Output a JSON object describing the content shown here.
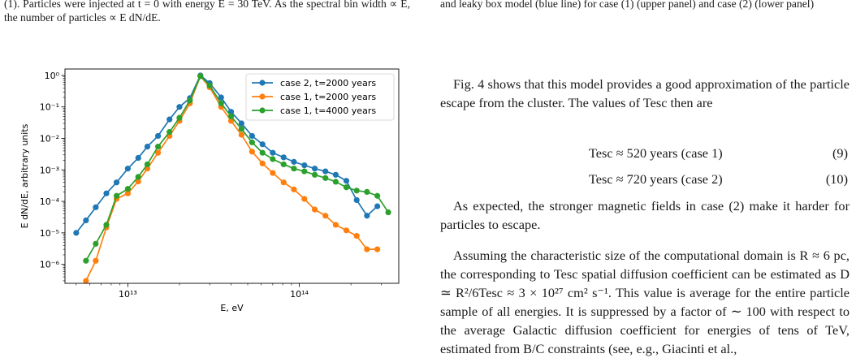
{
  "left_column": {
    "caption": "(1). Particles were injected at t = 0 with energy E = 30 TeV. As the spectral bin width ∝ E, the number of particles ∝ E dN/dE."
  },
  "right_column": {
    "caption": "and leaky box model (blue line) for case (1) (upper panel) and case (2) (lower panel)",
    "paragraph1": "Fig. 4 shows that this model provides a good approximation of the particle escape from the cluster. The values of Tesc then are",
    "equation1": {
      "text": "Tesc ≈ 520 years (case 1)",
      "number": "(9)"
    },
    "equation2": {
      "text": "Tesc ≈ 720 years (case 2)",
      "number": "(10)"
    },
    "paragraph2": "As expected, the stronger magnetic fields in case (2) make it harder for particles to escape.",
    "paragraph3": "Assuming the characteristic size of the computational domain is R ≈ 6 pc, the corresponding to Tesc spatial diffusion coefficient can be estimated as D ≃ R²/6Tesc ≈ 3 × 10²⁷ cm² s⁻¹. This value is average for the entire particle sample of all energies. It is suppressed by a factor of ∼ 100 with respect to the average Galactic diffusion coefficient for energies of tens of TeV, estimated from B/C constraints (see, e.g., Giacinti et al.,"
  },
  "chart_data": {
    "type": "line",
    "xlabel": "E, eV",
    "ylabel": "E dN/dE, arbitrary units",
    "xscale": "log",
    "yscale": "log",
    "xlim": [
      4300000000000.0,
      380000000000000.0
    ],
    "ylim": [
      2.5e-07,
      1.6
    ],
    "x_ticks": [
      {
        "value": 10000000000000.0,
        "label": "10¹³"
      },
      {
        "value": 100000000000000.0,
        "label": "10¹⁴"
      }
    ],
    "y_ticks": [
      {
        "value": 1,
        "label": "10⁰"
      },
      {
        "value": 0.1,
        "label": "10⁻¹"
      },
      {
        "value": 0.01,
        "label": "10⁻²"
      },
      {
        "value": 0.001,
        "label": "10⁻³"
      },
      {
        "value": 0.0001,
        "label": "10⁻⁴"
      },
      {
        "value": 1e-05,
        "label": "10⁻⁵"
      },
      {
        "value": 1e-06,
        "label": "10⁻⁶"
      }
    ],
    "legend_position": "top-right",
    "grid": false,
    "series": [
      {
        "name": "case 2, t=2000 years",
        "color": "#1f77b4",
        "x": [
          5000000000000.0,
          5700000000000.0,
          6500000000000.0,
          7500000000000.0,
          8600000000000.0,
          10000000000000.0,
          11500000000000.0,
          13000000000000.0,
          15000000000000.0,
          17500000000000.0,
          20000000000000.0,
          23000000000000.0,
          26500000000000.0,
          30000000000000.0,
          35000000000000.0,
          40000000000000.0,
          46000000000000.0,
          53000000000000.0,
          61000000000000.0,
          70000000000000.0,
          81000000000000.0,
          93000000000000.0,
          107000000000000.0,
          123000000000000.0,
          142000000000000.0,
          163000000000000.0,
          188000000000000.0,
          216000000000000.0,
          248000000000000.0,
          285000000000000.0
        ],
        "y": [
          1e-05,
          2.5e-05,
          6.5e-05,
          0.00018,
          0.0004,
          0.0011,
          0.0024,
          0.0055,
          0.012,
          0.04,
          0.1,
          0.19,
          1.0,
          0.57,
          0.2,
          0.07,
          0.03,
          0.012,
          0.0065,
          0.0035,
          0.0025,
          0.0018,
          0.0014,
          0.0011,
          0.0009,
          0.0007,
          0.00045,
          0.00011,
          3.5e-05,
          7e-05
        ]
      },
      {
        "name": "case 1, t=2000 years",
        "color": "#ff7f0e",
        "x": [
          5700000000000.0,
          6500000000000.0,
          7500000000000.0,
          8600000000000.0,
          10000000000000.0,
          11500000000000.0,
          13000000000000.0,
          15000000000000.0,
          17500000000000.0,
          20000000000000.0,
          23000000000000.0,
          26500000000000.0,
          30000000000000.0,
          35000000000000.0,
          40000000000000.0,
          46000000000000.0,
          53000000000000.0,
          61000000000000.0,
          70000000000000.0,
          81000000000000.0,
          93000000000000.0,
          107000000000000.0,
          123000000000000.0,
          142000000000000.0,
          163000000000000.0,
          188000000000000.0,
          216000000000000.0,
          248000000000000.0,
          285000000000000.0
        ],
        "y": [
          3e-07,
          1.3e-06,
          1.5e-05,
          0.00012,
          0.00018,
          0.00043,
          0.0011,
          0.0035,
          0.012,
          0.036,
          0.13,
          0.95,
          0.42,
          0.1,
          0.036,
          0.013,
          0.0038,
          0.0016,
          0.0008,
          0.0004,
          0.00024,
          0.00012,
          5.5e-05,
          3.5e-05,
          1.8e-05,
          1.2e-05,
          8e-06,
          3e-06,
          3e-06
        ]
      },
      {
        "name": "case 1, t=4000 years",
        "color": "#2ca02c",
        "x": [
          5700000000000.0,
          6500000000000.0,
          7500000000000.0,
          8600000000000.0,
          10000000000000.0,
          11500000000000.0,
          13000000000000.0,
          15000000000000.0,
          17500000000000.0,
          20000000000000.0,
          23000000000000.0,
          26500000000000.0,
          30000000000000.0,
          35000000000000.0,
          40000000000000.0,
          46000000000000.0,
          53000000000000.0,
          61000000000000.0,
          70000000000000.0,
          81000000000000.0,
          93000000000000.0,
          107000000000000.0,
          123000000000000.0,
          142000000000000.0,
          163000000000000.0,
          188000000000000.0,
          216000000000000.0,
          248000000000000.0,
          285000000000000.0,
          330000000000000.0
        ],
        "y": [
          1.3e-06,
          4.5e-06,
          1.8e-05,
          0.00015,
          0.00025,
          0.0006,
          0.0015,
          0.0055,
          0.016,
          0.045,
          0.16,
          0.95,
          0.48,
          0.13,
          0.05,
          0.02,
          0.0075,
          0.0035,
          0.0022,
          0.0015,
          0.0011,
          0.0009,
          0.0007,
          0.00055,
          0.00042,
          0.00028,
          0.00022,
          0.0002,
          0.00015,
          4.5e-05
        ]
      }
    ]
  }
}
